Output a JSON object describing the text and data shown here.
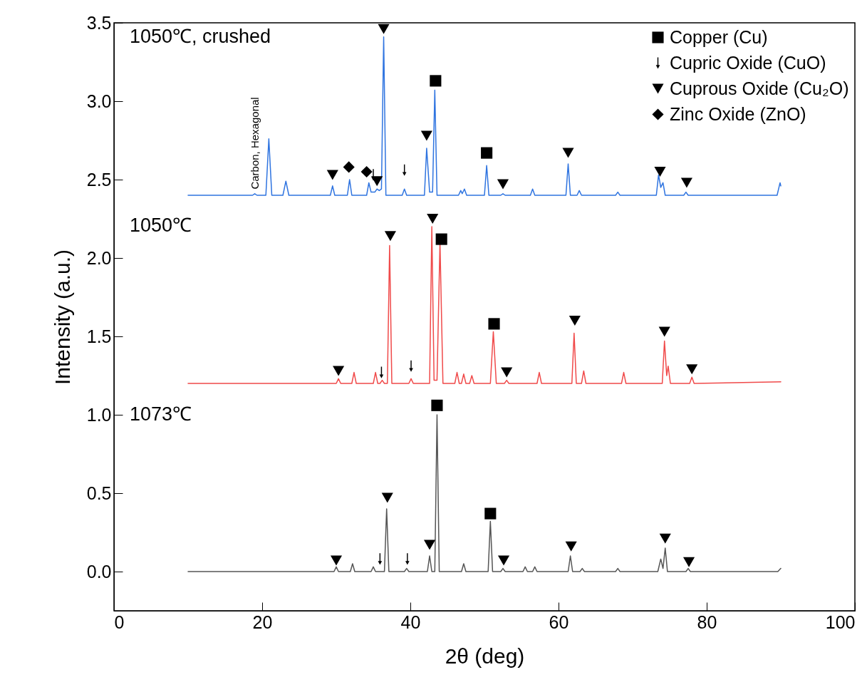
{
  "chart_data": {
    "type": "line",
    "xlabel": "2θ (deg)",
    "ylabel": "Intensity (a.u.)",
    "xlim": [
      0,
      100
    ],
    "xticks": [
      0,
      20,
      40,
      60,
      80,
      100
    ],
    "ylim": [
      -0.25,
      3.5
    ],
    "yticks": [
      {
        "value": 0,
        "label": "0.0"
      },
      0.5,
      {
        "value": 1,
        "label": "1.0"
      },
      1.5,
      {
        "value": 2,
        "label": "2.0"
      },
      2.5,
      {
        "value": 3,
        "label": "3.0"
      },
      3.5
    ],
    "grid": false,
    "legend": "top right",
    "annotations": [
      {
        "text": "Carbon, Hexagonal",
        "x": 19,
        "y": 2.42
      },
      "1050℃, crushed",
      "1050℃",
      "1073℃"
    ],
    "series": [
      {
        "color": "#2f74e0",
        "x": [
          10,
          18.7,
          19,
          19.3,
          20.5,
          20.9,
          21.3,
          22.8,
          23.2,
          23.6,
          29.2,
          29.5,
          29.8,
          31.5,
          31.8,
          32.1,
          34.1,
          34.4,
          34.7,
          35.2,
          35.5,
          35.8,
          36.1,
          36.4,
          36.7,
          38.9,
          39.2,
          39.5,
          41.9,
          42.2,
          42.6,
          43.0,
          43.3,
          43.6,
          46.5,
          46.8,
          47.0,
          47.3,
          47.6,
          50.0,
          50.3,
          50.6,
          52.2,
          52.5,
          52.8,
          56.2,
          56.5,
          56.8,
          61.0,
          61.3,
          61.6,
          62.5,
          62.8,
          63.1,
          67.7,
          68,
          68.3,
          73.2,
          73.5,
          73.8,
          74.1,
          74.4,
          76.9,
          77.2,
          77.5,
          89.5,
          89.9,
          90
        ],
        "values": [
          2.4,
          2.4,
          2.41,
          2.4,
          2.4,
          2.76,
          2.4,
          2.4,
          2.49,
          2.4,
          2.4,
          2.46,
          2.4,
          2.4,
          2.5,
          2.4,
          2.4,
          2.48,
          2.42,
          2.42,
          2.44,
          2.43,
          2.44,
          3.41,
          2.4,
          2.4,
          2.44,
          2.4,
          2.4,
          2.7,
          2.42,
          2.42,
          3.07,
          2.4,
          2.4,
          2.43,
          2.41,
          2.44,
          2.4,
          2.4,
          2.59,
          2.4,
          2.4,
          2.41,
          2.4,
          2.4,
          2.44,
          2.4,
          2.4,
          2.6,
          2.4,
          2.4,
          2.43,
          2.4,
          2.4,
          2.42,
          2.4,
          2.4,
          2.53,
          2.45,
          2.48,
          2.4,
          2.4,
          2.42,
          2.4,
          2.4,
          2.48,
          2.46
        ]
      },
      {
        "color": "#f04a4a",
        "x": [
          10,
          30.0,
          30.3,
          30.6,
          32.1,
          32.4,
          32.7,
          35.0,
          35.3,
          35.6,
          35.9,
          36.2,
          36.5,
          36.9,
          37.2,
          37.5,
          39.8,
          40.1,
          40.4,
          42.6,
          42.9,
          43.2,
          43.6,
          44.0,
          44.4,
          46.0,
          46.3,
          46.6,
          46.9,
          47.2,
          47.5,
          48.0,
          48.3,
          48.6,
          50.8,
          51.2,
          51.6,
          52.7,
          53.0,
          53.3,
          57.1,
          57.4,
          57.7,
          61.8,
          62.1,
          62.4,
          63.1,
          63.4,
          63.7,
          68.5,
          68.8,
          69.1,
          74.0,
          74.3,
          74.6,
          74.8,
          75.1,
          77.7,
          78.0,
          78.3,
          90
        ],
        "values": [
          1.2,
          1.2,
          1.23,
          1.2,
          1.2,
          1.27,
          1.2,
          1.2,
          1.27,
          1.2,
          1.2,
          1.22,
          1.2,
          1.2,
          2.08,
          1.2,
          1.2,
          1.23,
          1.2,
          1.2,
          2.2,
          1.22,
          1.22,
          2.1,
          1.2,
          1.2,
          1.27,
          1.2,
          1.2,
          1.26,
          1.2,
          1.2,
          1.25,
          1.2,
          1.2,
          1.53,
          1.2,
          1.2,
          1.22,
          1.2,
          1.2,
          1.27,
          1.2,
          1.2,
          1.52,
          1.2,
          1.2,
          1.28,
          1.2,
          1.2,
          1.27,
          1.2,
          1.2,
          1.47,
          1.25,
          1.31,
          1.2,
          1.2,
          1.24,
          1.2,
          1.21
        ]
      },
      {
        "color": "#555555",
        "x": [
          10,
          29.7,
          30,
          30.3,
          31.9,
          32.2,
          32.5,
          34.7,
          35,
          35.3,
          36.5,
          36.8,
          37.1,
          39.2,
          39.5,
          39.8,
          42.3,
          42.6,
          42.9,
          43.3,
          43.6,
          43.9,
          46.9,
          47.2,
          47.5,
          50.5,
          50.8,
          51.1,
          52.2,
          52.5,
          52.8,
          55.2,
          55.5,
          55.8,
          56.5,
          56.8,
          57.1,
          61.3,
          61.6,
          61.9,
          62.9,
          63.2,
          63.5,
          67.7,
          68,
          68.3,
          73.4,
          73.8,
          74.1,
          74.4,
          74.7,
          77.2,
          77.5,
          77.8,
          89.6,
          90
        ],
        "values": [
          0,
          0,
          0.03,
          0,
          0,
          0.05,
          0,
          0,
          0.03,
          0,
          0,
          0.4,
          0,
          0,
          0.02,
          0,
          0,
          0.1,
          0,
          0,
          1.0,
          0,
          0,
          0.05,
          0,
          0,
          0.32,
          0,
          0,
          0.02,
          0,
          0,
          0.03,
          0,
          0,
          0.03,
          0,
          0,
          0.1,
          0,
          0,
          0.02,
          0,
          0,
          0.02,
          0,
          0,
          0.08,
          0.02,
          0.15,
          0,
          0,
          0.02,
          0,
          0,
          0.02
        ]
      },
      {
        "name": "Copper (Cu)",
        "type": "scatter",
        "marker": "square",
        "color": "#000000",
        "x": [
          43.4,
          50.3,
          44.2,
          51.3,
          43.6,
          50.8
        ],
        "values": [
          3.13,
          2.67,
          2.12,
          1.58,
          1.06,
          0.37
        ]
      },
      {
        "name": "Cupric Oxide (CuO)",
        "type": "scatter",
        "color": "#000000",
        "x": [
          35.0,
          39.2,
          36.1,
          40.1,
          35.9,
          39.6
        ],
        "values": [
          2.53,
          2.56,
          1.27,
          1.31,
          0.08,
          0.08
        ]
      },
      {
        "name": "Cuprous Oxide (Cu₂O)",
        "type": "scatter",
        "marker": "triangle",
        "color": "#000000",
        "x": [
          36.4,
          29.5,
          35.5,
          42.2,
          52.5,
          61.3,
          73.7,
          77.3,
          30.3,
          37.3,
          43.0,
          53.0,
          62.2,
          74.3,
          78.0,
          30.0,
          36.9,
          42.6,
          52.6,
          61.7,
          74.4,
          77.6
        ],
        "values": [
          3.46,
          2.53,
          2.49,
          2.78,
          2.47,
          2.67,
          2.55,
          2.48,
          1.28,
          2.14,
          2.25,
          1.27,
          1.6,
          1.53,
          1.29,
          0.07,
          0.47,
          0.17,
          0.07,
          0.16,
          0.21,
          0.06
        ]
      },
      {
        "name": "Zinc Oxide (ZnO)",
        "type": "scatter",
        "marker": "diamond",
        "color": "#000000",
        "x": [
          31.7,
          34.1
        ],
        "values": [
          2.58,
          2.55
        ]
      }
    ]
  }
}
